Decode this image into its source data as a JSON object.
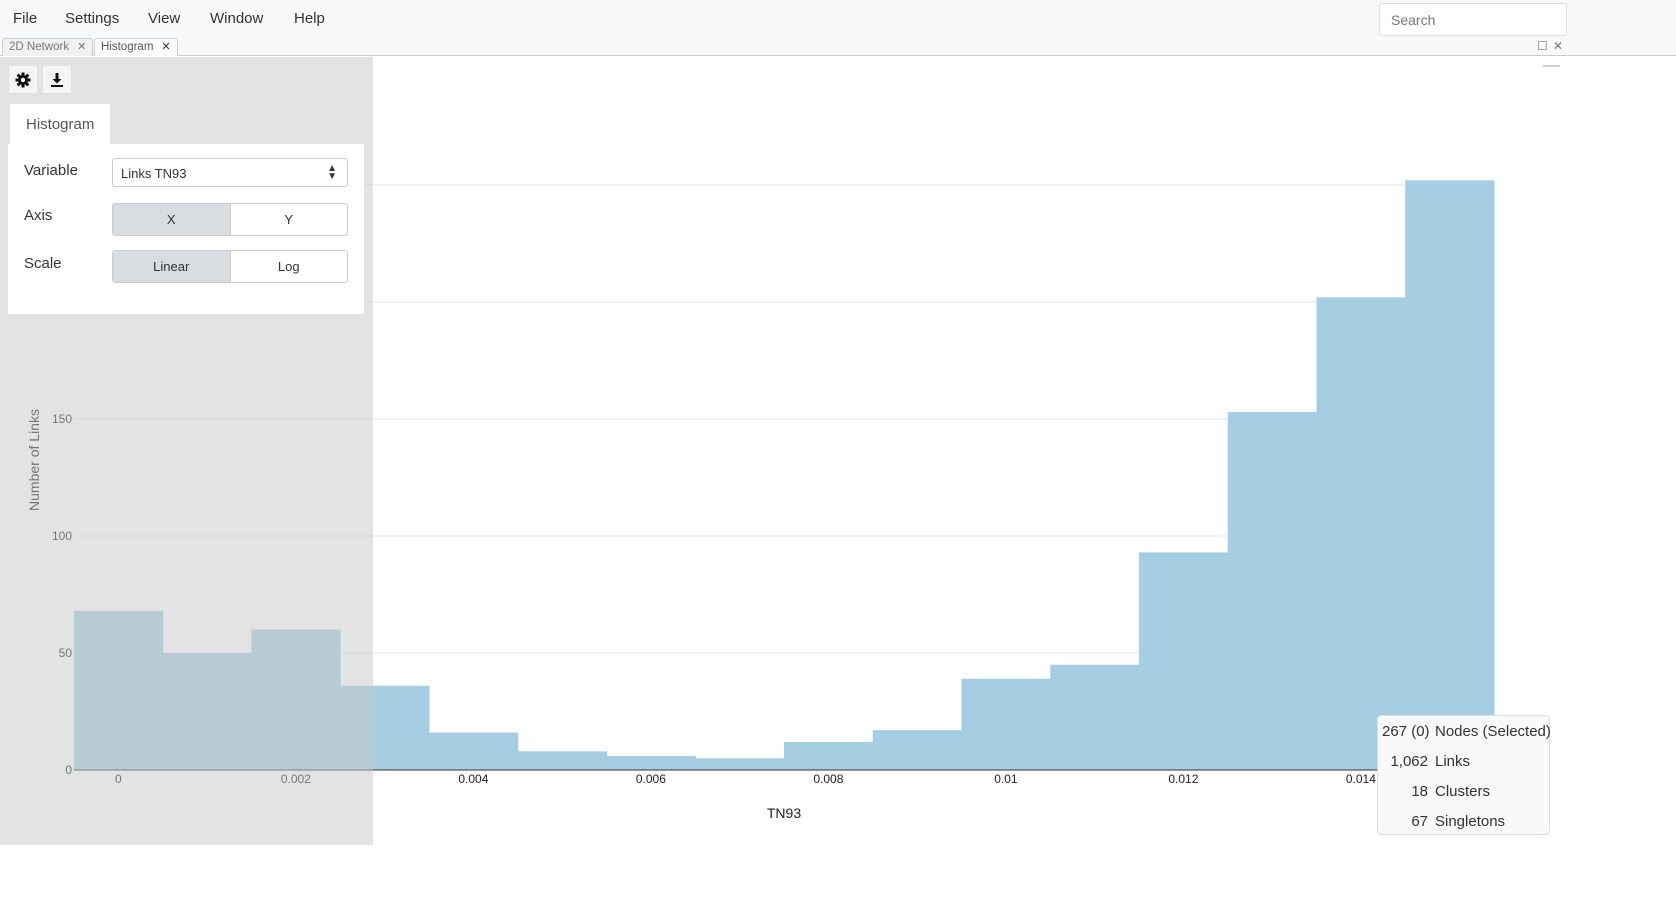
{
  "menu": [
    "File",
    "Settings",
    "View",
    "Window",
    "Help"
  ],
  "search": {
    "placeholder": "Search"
  },
  "tabs": [
    {
      "label": "2D Network",
      "active": false
    },
    {
      "label": "Histogram",
      "active": true
    }
  ],
  "toolbar": {
    "settings_icon": "gear-icon",
    "export_icon": "download-icon"
  },
  "panel": {
    "tab": "Histogram",
    "variable_label": "Variable",
    "variable_value": "Links TN93",
    "axis_label": "Axis",
    "axis_options": [
      "X",
      "Y"
    ],
    "axis_selected": "X",
    "scale_label": "Scale",
    "scale_options": [
      "Linear",
      "Log"
    ],
    "scale_selected": "Linear"
  },
  "stats": [
    {
      "value": "267 (0)",
      "label": "Nodes (Selected)"
    },
    {
      "value": "1,062",
      "label": "Links"
    },
    {
      "value": "18",
      "label": "Clusters"
    },
    {
      "value": "67",
      "label": "Singletons"
    }
  ],
  "chart_data": {
    "type": "bar",
    "xlabel": "TN93",
    "ylabel": "Number of Links",
    "bin_width": 0.001,
    "bin_centers": [
      0,
      0.001,
      0.002,
      0.003,
      0.004,
      0.005,
      0.006,
      0.007,
      0.008,
      0.009,
      0.01,
      0.011,
      0.012,
      0.013,
      0.014,
      0.015
    ],
    "values": [
      68,
      50,
      60,
      36,
      16,
      8,
      6,
      5,
      12,
      17,
      39,
      45,
      93,
      153,
      202,
      252
    ],
    "xticks": [
      0,
      0.002,
      0.004,
      0.006,
      0.008,
      0.01,
      0.012,
      0.014
    ],
    "xtick_labels": [
      "0",
      "0.002",
      "0.004",
      "0.006",
      "0.008",
      "0.01",
      "0.012",
      "0.014"
    ],
    "yticks": [
      0,
      50,
      100,
      150
    ],
    "ytick_labels": [
      "0",
      "50",
      "100",
      "150"
    ],
    "gridlines_y": [
      50,
      100,
      150,
      200,
      250
    ],
    "xlim": [
      -0.0005,
      0.0155
    ],
    "grid": true,
    "color": "#a6cee3"
  }
}
